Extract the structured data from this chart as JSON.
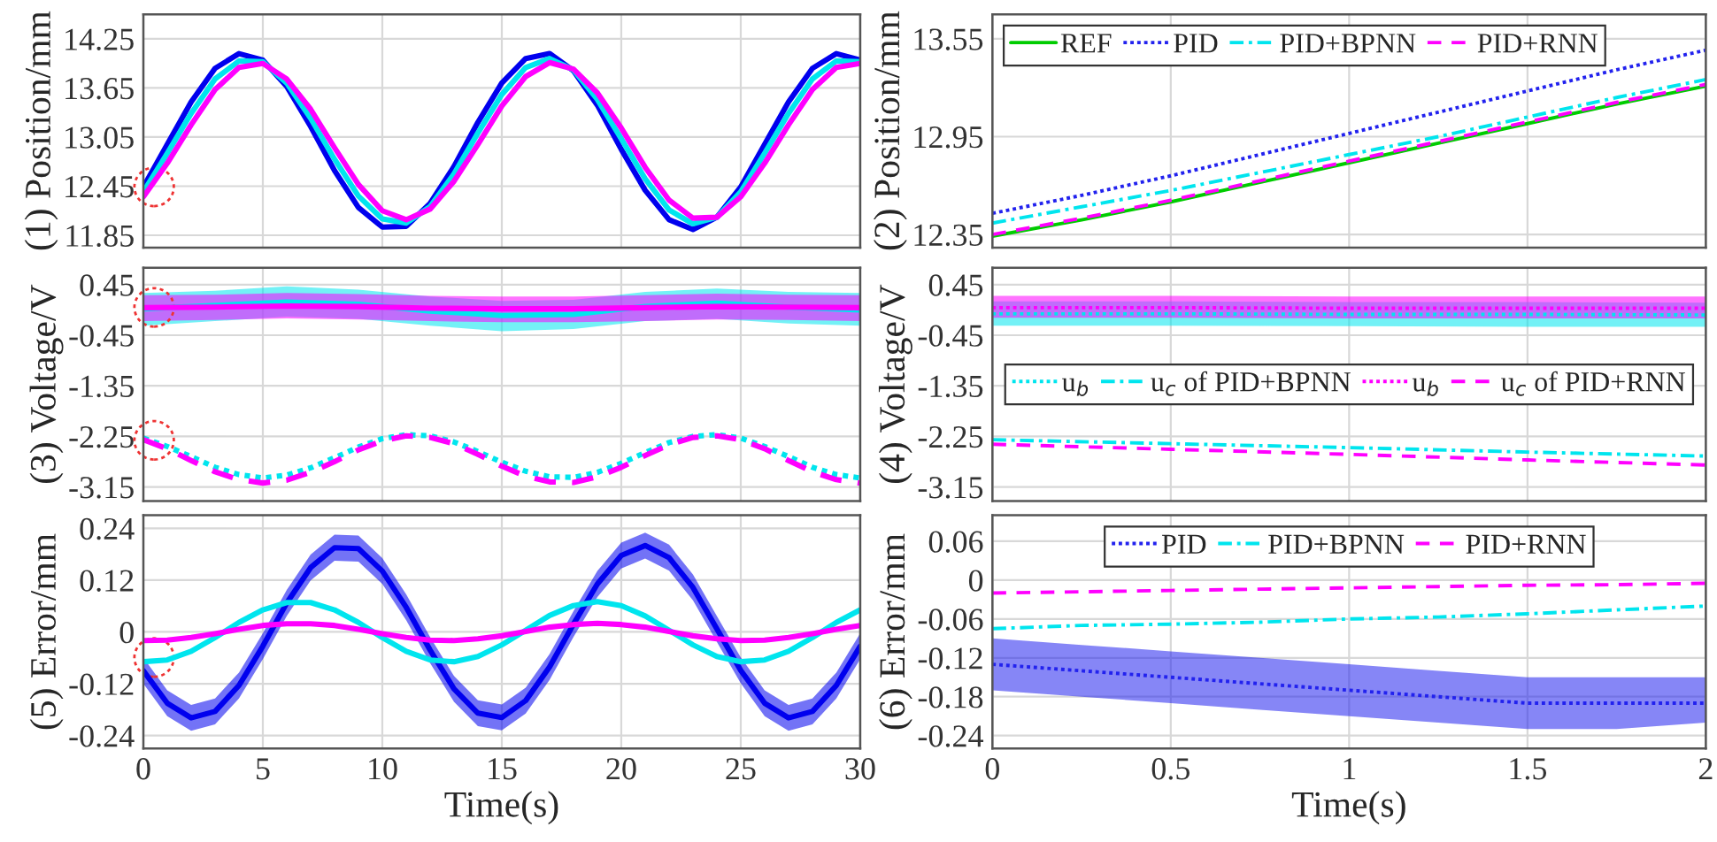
{
  "chart_data": [
    {
      "type": "line",
      "ylabel": "(1) Position/mm",
      "x": [
        0,
        1,
        2,
        3,
        4,
        5,
        6,
        7,
        8,
        9,
        10,
        11,
        12,
        13,
        14,
        15,
        16,
        17,
        18,
        19,
        20,
        21,
        22,
        23,
        24,
        25,
        26,
        27,
        28,
        29,
        30
      ],
      "xlim": [
        0,
        30
      ],
      "xticks": [
        0,
        5,
        10,
        15,
        20,
        25,
        30
      ],
      "ylim": [
        11.7,
        14.55
      ],
      "yticks": [
        11.85,
        12.45,
        13.05,
        13.65,
        14.25
      ],
      "grid": true,
      "tick_labels": "y",
      "line_style": "solid",
      "series": [
        {
          "color": "#0000ee",
          "values": [
            12.44,
            12.96,
            13.48,
            13.89,
            14.07,
            13.99,
            13.67,
            13.18,
            12.64,
            12.19,
            11.95,
            11.96,
            12.24,
            12.69,
            13.23,
            13.71,
            14.01,
            14.07,
            13.86,
            13.44,
            12.9,
            12.4,
            12.04,
            11.92,
            12.07,
            12.44,
            12.96,
            13.48,
            13.89,
            14.07,
            13.99
          ]
        },
        {
          "color": "#00e5ee",
          "values": [
            12.38,
            12.85,
            13.34,
            13.76,
            13.98,
            13.97,
            13.71,
            13.28,
            12.78,
            12.33,
            12.05,
            12.0,
            12.2,
            12.6,
            13.1,
            13.57,
            13.9,
            14.01,
            13.87,
            13.51,
            13.03,
            12.54,
            12.16,
            11.99,
            12.07,
            12.38,
            12.85,
            13.34,
            13.76,
            13.98,
            13.97
          ]
        },
        {
          "color": "#ff00ff",
          "values": [
            12.32,
            12.73,
            13.2,
            13.63,
            13.9,
            13.95,
            13.76,
            13.39,
            12.92,
            12.47,
            12.15,
            12.04,
            12.17,
            12.51,
            12.96,
            13.43,
            13.79,
            13.96,
            13.88,
            13.59,
            13.16,
            12.68,
            12.28,
            12.06,
            12.07,
            12.32,
            12.73,
            13.2,
            13.63,
            13.9,
            13.95
          ]
        }
      ]
    },
    {
      "type": "line",
      "ylabel": "(2) Position/mm",
      "x": [
        0,
        0.25,
        0.5,
        0.75,
        1,
        1.25,
        1.5,
        1.75,
        2
      ],
      "xlim": [
        0,
        2
      ],
      "xticks": [
        0,
        0.5,
        1,
        1.5,
        2
      ],
      "ylim": [
        12.27,
        13.7
      ],
      "yticks": [
        12.35,
        12.95,
        13.55
      ],
      "grid": true,
      "tick_labels": "y",
      "legend": "top left",
      "series": [
        {
          "name": "REF",
          "color": "#00cc00",
          "line_style": "solid",
          "values": [
            12.34,
            12.44,
            12.55,
            12.67,
            12.79,
            12.91,
            13.03,
            13.15,
            13.26
          ]
        },
        {
          "name": "PID",
          "color": "#2222ee",
          "line_style": "dotted",
          "values": [
            12.48,
            12.59,
            12.71,
            12.84,
            12.97,
            13.1,
            13.23,
            13.36,
            13.48
          ]
        },
        {
          "name": "PID+BPNN",
          "color": "#00e5ee",
          "line_style": "dashdot",
          "values": [
            12.42,
            12.52,
            12.62,
            12.73,
            12.84,
            12.95,
            13.07,
            13.19,
            13.3
          ]
        },
        {
          "name": "PID+RNN",
          "color": "#ff00ff",
          "line_style": "dashed",
          "values": [
            12.35,
            12.45,
            12.56,
            12.68,
            12.8,
            12.92,
            13.04,
            13.16,
            13.27
          ]
        }
      ]
    },
    {
      "type": "line",
      "ylabel": "(3) Voltage/V",
      "x": [
        0,
        1,
        2,
        3,
        4,
        5,
        6,
        7,
        8,
        9,
        10,
        11,
        12,
        13,
        14,
        15,
        16,
        17,
        18,
        19,
        20,
        21,
        22,
        23,
        24,
        25,
        26,
        27,
        28,
        29,
        30
      ],
      "xlim": [
        0,
        30
      ],
      "xticks": [
        0,
        5,
        10,
        15,
        20,
        25,
        30
      ],
      "ylim": [
        -3.4,
        0.75
      ],
      "yticks": [
        -3.15,
        -2.25,
        -1.35,
        -0.45,
        0.45
      ],
      "grid": true,
      "tick_labels": "y",
      "series": [
        {
          "color": "#00e5ee",
          "line_style": "solid",
          "x": [
            0,
            3,
            6,
            9,
            12,
            15,
            18,
            21,
            24,
            27,
            30
          ],
          "values": [
            0.02,
            0.08,
            0.14,
            0.1,
            -0.02,
            -0.1,
            -0.08,
            0.06,
            0.12,
            0.05,
            0.0
          ],
          "lower": [
            -0.28,
            -0.2,
            -0.12,
            -0.16,
            -0.28,
            -0.38,
            -0.34,
            -0.2,
            -0.16,
            -0.24,
            -0.28
          ],
          "upper": [
            0.3,
            0.34,
            0.42,
            0.36,
            0.24,
            0.16,
            0.18,
            0.32,
            0.38,
            0.32,
            0.3
          ]
        },
        {
          "color": "#ff00ff",
          "line_style": "solid",
          "x": [
            0,
            3,
            6,
            9,
            12,
            15,
            18,
            21,
            24,
            27,
            30
          ],
          "values": [
            0.04,
            0.05,
            0.07,
            0.06,
            0.03,
            0.02,
            0.02,
            0.04,
            0.06,
            0.05,
            0.04
          ],
          "lower": [
            -0.2,
            -0.18,
            -0.15,
            -0.17,
            -0.2,
            -0.22,
            -0.22,
            -0.2,
            -0.17,
            -0.18,
            -0.2
          ],
          "upper": [
            0.26,
            0.27,
            0.3,
            0.28,
            0.25,
            0.24,
            0.24,
            0.26,
            0.29,
            0.27,
            0.26
          ]
        },
        {
          "color": "#00e5ee",
          "line_style": "dotted",
          "values": [
            -2.28,
            -2.43,
            -2.61,
            -2.8,
            -2.93,
            -2.99,
            -2.94,
            -2.81,
            -2.63,
            -2.44,
            -2.29,
            -2.22,
            -2.24,
            -2.35,
            -2.52,
            -2.71,
            -2.87,
            -2.97,
            -2.98,
            -2.89,
            -2.73,
            -2.54,
            -2.36,
            -2.25,
            -2.22,
            -2.28,
            -2.43,
            -2.61,
            -2.8,
            -2.93,
            -2.99
          ]
        },
        {
          "color": "#ff00ff",
          "line_style": "dashed",
          "values": [
            -2.31,
            -2.47,
            -2.68,
            -2.88,
            -3.02,
            -3.08,
            -3.03,
            -2.89,
            -2.7,
            -2.49,
            -2.33,
            -2.24,
            -2.27,
            -2.38,
            -2.57,
            -2.78,
            -2.96,
            -3.06,
            -3.07,
            -2.97,
            -2.8,
            -2.59,
            -2.4,
            -2.27,
            -2.24,
            -2.31,
            -2.47,
            -2.68,
            -2.88,
            -3.02,
            -3.08
          ]
        }
      ]
    },
    {
      "type": "line",
      "ylabel": "(4) Voltage/V",
      "x": [
        0,
        0.5,
        1,
        1.5,
        2
      ],
      "xlim": [
        0,
        2
      ],
      "xticks": [
        0,
        0.5,
        1,
        1.5,
        2
      ],
      "ylim": [
        -3.4,
        0.75
      ],
      "yticks": [
        -3.15,
        -2.25,
        -1.35,
        -0.45,
        0.45
      ],
      "grid": true,
      "tick_labels": "y",
      "legend": "center",
      "series": [
        {
          "name": "u$_{b}$",
          "color": "#00e5ee",
          "line_style": "dotted",
          "values": [
            -0.07,
            -0.07,
            -0.08,
            -0.08,
            -0.09
          ],
          "lower": [
            -0.28,
            -0.28,
            -0.29,
            -0.3,
            -0.3
          ],
          "upper": [
            0.15,
            0.15,
            0.14,
            0.14,
            0.13
          ]
        },
        {
          "name": "u$_{c}$ of PID+BPNN",
          "color": "#00e5ee",
          "line_style": "dashdot",
          "values": [
            -2.31,
            -2.38,
            -2.45,
            -2.53,
            -2.6
          ]
        },
        {
          "name": "u$_{b}$",
          "color": "#ff00ff",
          "line_style": "dotted",
          "values": [
            0.04,
            0.04,
            0.03,
            0.03,
            0.03
          ],
          "lower": [
            -0.14,
            -0.14,
            -0.15,
            -0.15,
            -0.15
          ],
          "upper": [
            0.25,
            0.25,
            0.24,
            0.24,
            0.24
          ]
        },
        {
          "name": "u$_{c}$ of PID+RNN",
          "color": "#ff00ff",
          "line_style": "dashed",
          "values": [
            -2.39,
            -2.48,
            -2.57,
            -2.67,
            -2.76
          ]
        }
      ]
    },
    {
      "type": "line",
      "ylabel": "(5) Error/mm",
      "xlabel": "Time(s)",
      "x": [
        0,
        1,
        2,
        3,
        4,
        5,
        6,
        7,
        8,
        9,
        10,
        11,
        12,
        13,
        14,
        15,
        16,
        17,
        18,
        19,
        20,
        21,
        22,
        23,
        24,
        25,
        26,
        27,
        28,
        29,
        30
      ],
      "xlim": [
        0,
        30
      ],
      "xticks": [
        0,
        5,
        10,
        15,
        20,
        25,
        30
      ],
      "ylim": [
        -0.27,
        0.27
      ],
      "yticks": [
        -0.24,
        -0.12,
        0,
        0.12,
        0.24
      ],
      "grid": true,
      "line_style": "solid",
      "series": [
        {
          "color": "#0000ee",
          "values": [
            -0.09,
            -0.165,
            -0.199,
            -0.184,
            -0.124,
            -0.033,
            0.067,
            0.149,
            0.195,
            0.193,
            0.141,
            0.057,
            -0.042,
            -0.132,
            -0.188,
            -0.198,
            -0.159,
            -0.081,
            0.018,
            0.111,
            0.177,
            0.2,
            0.172,
            0.103,
            0.007,
            -0.089,
            -0.165,
            -0.199,
            -0.184,
            -0.124,
            -0.033
          ],
          "lower": [
            -0.12,
            -0.195,
            -0.229,
            -0.214,
            -0.154,
            -0.063,
            0.037,
            0.119,
            0.165,
            0.163,
            0.111,
            0.027,
            -0.072,
            -0.162,
            -0.218,
            -0.228,
            -0.189,
            -0.111,
            -0.012,
            0.081,
            0.147,
            0.17,
            0.142,
            0.073,
            -0.023,
            -0.119,
            -0.195,
            -0.229,
            -0.214,
            -0.154,
            -0.063
          ],
          "upper": [
            -0.06,
            -0.135,
            -0.169,
            -0.154,
            -0.094,
            -0.003,
            0.097,
            0.179,
            0.225,
            0.223,
            0.171,
            0.087,
            -0.012,
            -0.102,
            -0.158,
            -0.168,
            -0.129,
            -0.051,
            0.048,
            0.141,
            0.207,
            0.23,
            0.202,
            0.133,
            0.037,
            -0.059,
            -0.135,
            -0.169,
            -0.154,
            -0.094,
            -0.003
          ]
        },
        {
          "color": "#00e5ee",
          "values": [
            -0.069,
            -0.065,
            -0.045,
            -0.013,
            0.022,
            0.051,
            0.068,
            0.068,
            0.051,
            0.022,
            -0.013,
            -0.045,
            -0.065,
            -0.069,
            -0.057,
            -0.03,
            0.004,
            0.038,
            0.061,
            0.07,
            0.061,
            0.037,
            0.004,
            -0.03,
            -0.057,
            -0.069,
            -0.065,
            -0.045,
            -0.013,
            0.022,
            0.051
          ]
        },
        {
          "color": "#ff00ff",
          "values": [
            -0.02,
            -0.019,
            -0.013,
            -0.004,
            0.006,
            0.015,
            0.019,
            0.019,
            0.015,
            0.006,
            -0.004,
            -0.013,
            -0.019,
            -0.02,
            -0.016,
            -0.009,
            0.001,
            0.011,
            0.017,
            0.02,
            0.017,
            0.011,
            0.001,
            -0.009,
            -0.016,
            -0.02,
            -0.019,
            -0.013,
            -0.004,
            0.006,
            0.015
          ]
        }
      ]
    },
    {
      "type": "line",
      "ylabel": "(6) Error/mm",
      "xlabel": "Time(s)",
      "x": [
        0,
        0.25,
        0.5,
        0.75,
        1,
        1.25,
        1.5,
        1.75,
        2
      ],
      "xlim": [
        0,
        2
      ],
      "xticks": [
        0,
        0.5,
        1,
        1.5,
        2
      ],
      "ylim": [
        -0.26,
        0.1
      ],
      "yticks": [
        -0.24,
        -0.18,
        -0.12,
        -0.06,
        0,
        0.06
      ],
      "grid": true,
      "legend": "top",
      "series": [
        {
          "name": "PID",
          "color": "#2222ee",
          "line_style": "dotted",
          "values": [
            -0.13,
            -0.14,
            -0.15,
            -0.16,
            -0.17,
            -0.18,
            -0.19,
            -0.19,
            -0.19
          ],
          "lower": [
            -0.17,
            -0.18,
            -0.19,
            -0.2,
            -0.21,
            -0.22,
            -0.23,
            -0.23,
            -0.22
          ],
          "upper": [
            -0.09,
            -0.1,
            -0.11,
            -0.12,
            -0.13,
            -0.14,
            -0.15,
            -0.15,
            -0.15
          ]
        },
        {
          "name": "PID+BPNN",
          "color": "#00e5ee",
          "line_style": "dashdot",
          "values": [
            -0.075,
            -0.07,
            -0.068,
            -0.065,
            -0.06,
            -0.057,
            -0.052,
            -0.046,
            -0.04
          ]
        },
        {
          "name": "PID+RNN",
          "color": "#ff00ff",
          "line_style": "dashed",
          "values": [
            -0.02,
            -0.018,
            -0.016,
            -0.014,
            -0.012,
            -0.01,
            -0.008,
            -0.007,
            -0.005
          ]
        }
      ]
    }
  ]
}
